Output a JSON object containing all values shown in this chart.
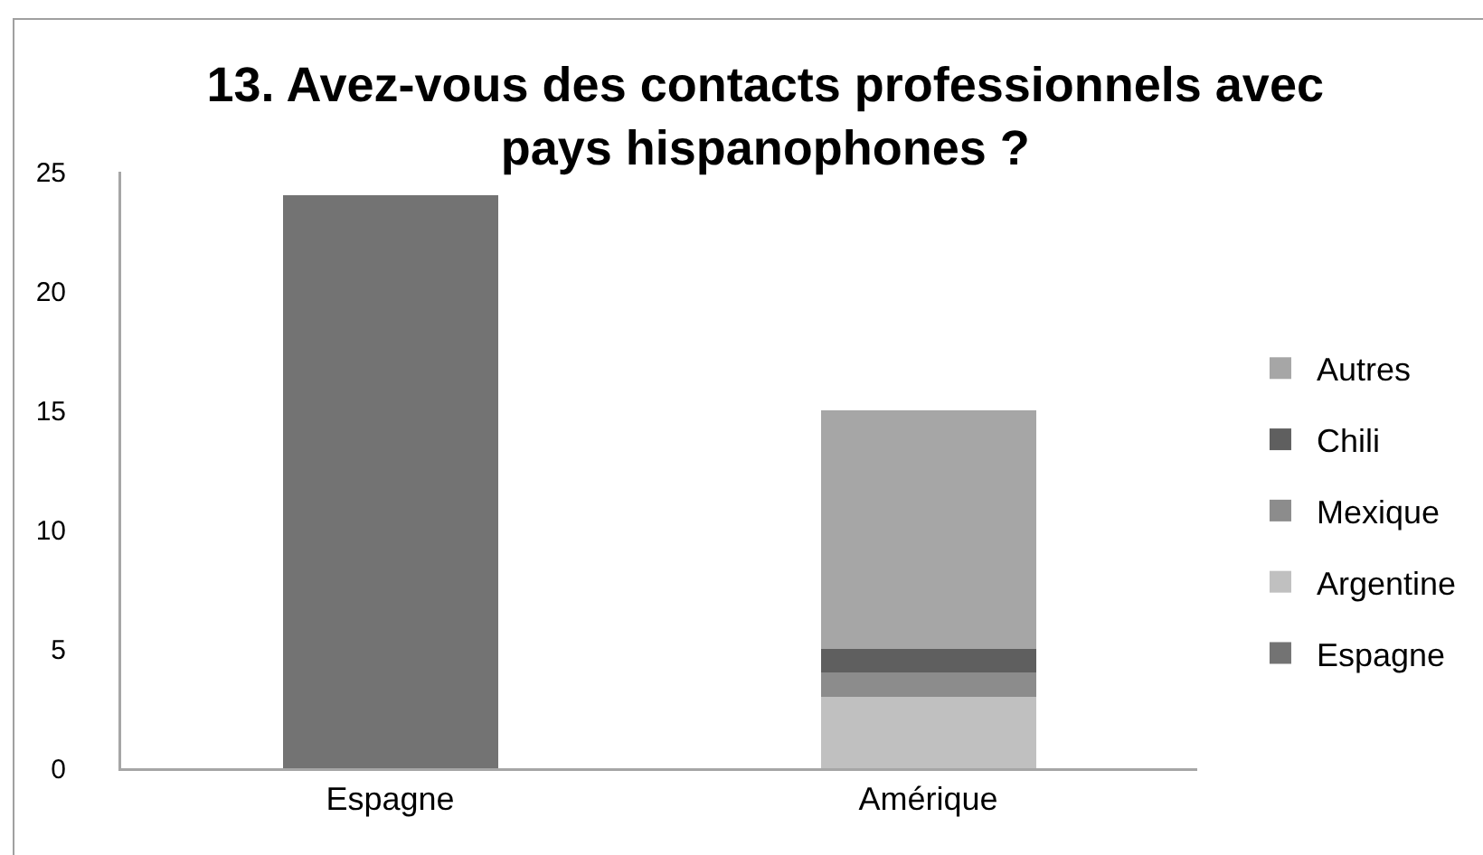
{
  "chart_data": {
    "type": "bar",
    "title": "13. Avez-vous des contacts professionnels avec pays hispanophones ?",
    "categories": [
      "Espagne",
      "Amérique"
    ],
    "series": [
      {
        "name": "Espagne",
        "color": "#737373",
        "values": [
          24,
          null
        ]
      },
      {
        "name": "Argentine",
        "color": "#c0c0c0",
        "values": [
          null,
          3
        ]
      },
      {
        "name": "Mexique",
        "color": "#8c8c8c",
        "values": [
          null,
          1
        ]
      },
      {
        "name": "Chili",
        "color": "#5f5f5f",
        "values": [
          null,
          1
        ]
      },
      {
        "name": "Autres",
        "color": "#a6a6a6",
        "values": [
          null,
          10
        ]
      }
    ],
    "stacked": true,
    "ylim": [
      0,
      25
    ],
    "yticks": [
      0,
      5,
      10,
      15,
      20,
      25
    ],
    "grid": false,
    "legend": "right"
  }
}
